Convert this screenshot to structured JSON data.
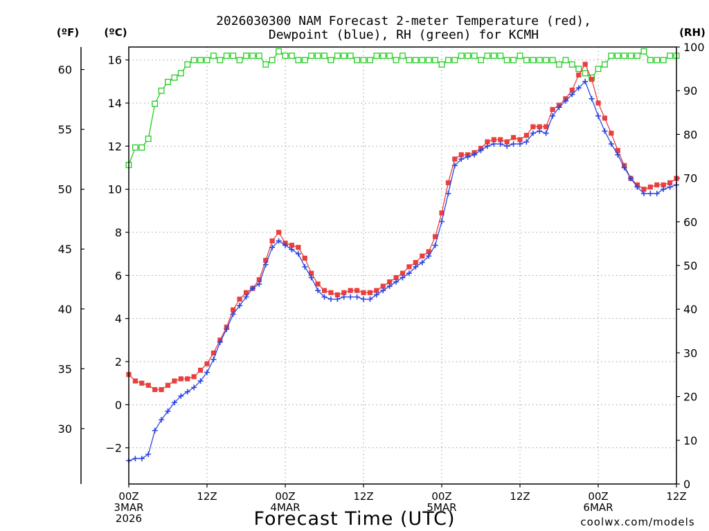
{
  "colors": {
    "temperature": "#e8403f",
    "dewpoint": "#2b45e0",
    "rh": "#22cc22",
    "credit": "#e03030"
  },
  "chart_data": {
    "type": "line",
    "title": "2026030300 NAM Forecast 2-meter Temperature (red),",
    "subtitle": "Dewpoint (blue), RH (green) for KCMH",
    "xlabel": "Forecast Time (UTC)",
    "credit": "coolwx.com/models",
    "left_unit_f": "(ºF)",
    "left_unit_c": "(ºC)",
    "right_unit": "(RH)",
    "x_range_hours": [
      0,
      84
    ],
    "c_range": [
      -3.68,
      16.6
    ],
    "rh_range": [
      0,
      100
    ],
    "c_ticks": [
      -2,
      0,
      2,
      4,
      6,
      8,
      10,
      12,
      14,
      16
    ],
    "f_ticks": [
      30,
      35,
      40,
      45,
      50,
      55,
      60
    ],
    "rh_ticks": [
      0,
      10,
      20,
      30,
      40,
      50,
      60,
      70,
      80,
      90,
      100
    ],
    "x_ticks": [
      {
        "hour": 0,
        "lines": [
          "00Z",
          "3MAR",
          "2026"
        ]
      },
      {
        "hour": 12,
        "lines": [
          "12Z"
        ]
      },
      {
        "hour": 24,
        "lines": [
          "00Z",
          "4MAR"
        ]
      },
      {
        "hour": 36,
        "lines": [
          "12Z"
        ]
      },
      {
        "hour": 48,
        "lines": [
          "00Z",
          "5MAR"
        ]
      },
      {
        "hour": 60,
        "lines": [
          "12Z"
        ]
      },
      {
        "hour": 72,
        "lines": [
          "00Z",
          "6MAR"
        ]
      },
      {
        "hour": 84,
        "lines": [
          "12Z"
        ]
      }
    ],
    "series": [
      {
        "key": "temperature",
        "values": [
          1.4,
          1.1,
          1.0,
          0.9,
          0.7,
          0.7,
          0.9,
          1.1,
          1.2,
          1.2,
          1.3,
          1.6,
          1.9,
          2.4,
          3.0,
          3.6,
          4.4,
          4.9,
          5.2,
          5.4,
          5.8,
          6.7,
          7.6,
          8.0,
          7.5,
          7.4,
          7.3,
          6.8,
          6.1,
          5.6,
          5.3,
          5.2,
          5.1,
          5.2,
          5.3,
          5.3,
          5.2,
          5.2,
          5.3,
          5.5,
          5.7,
          5.9,
          6.1,
          6.4,
          6.6,
          6.9,
          7.1,
          7.8,
          8.9,
          10.3,
          11.4,
          11.6,
          11.6,
          11.7,
          11.9,
          12.2,
          12.3,
          12.3,
          12.2,
          12.4,
          12.3,
          12.5,
          12.9,
          12.9,
          12.9,
          13.7,
          13.9,
          14.2,
          14.6,
          15.3,
          15.8,
          15.1,
          14.0,
          13.3,
          12.6,
          11.8,
          11.1,
          10.5,
          10.2,
          10.0,
          10.1,
          10.2,
          10.2,
          10.3,
          10.5
        ]
      },
      {
        "key": "dewpoint",
        "values": [
          -2.6,
          -2.5,
          -2.5,
          -2.3,
          -1.2,
          -0.7,
          -0.3,
          0.1,
          0.4,
          0.6,
          0.8,
          1.1,
          1.5,
          2.1,
          2.9,
          3.5,
          4.2,
          4.6,
          5.0,
          5.4,
          5.6,
          6.5,
          7.3,
          7.6,
          7.4,
          7.2,
          7.0,
          6.4,
          5.9,
          5.3,
          5.0,
          4.9,
          4.9,
          5.0,
          5.0,
          5.0,
          4.9,
          4.9,
          5.1,
          5.3,
          5.5,
          5.7,
          5.9,
          6.1,
          6.4,
          6.6,
          6.9,
          7.4,
          8.5,
          9.8,
          11.1,
          11.4,
          11.5,
          11.6,
          11.8,
          12.0,
          12.1,
          12.1,
          12.0,
          12.1,
          12.1,
          12.2,
          12.6,
          12.7,
          12.6,
          13.4,
          13.8,
          14.1,
          14.4,
          14.7,
          15.0,
          14.2,
          13.4,
          12.7,
          12.1,
          11.6,
          11.0,
          10.5,
          10.1,
          9.8,
          9.8,
          9.8,
          10.0,
          10.1,
          10.2
        ]
      },
      {
        "key": "rh",
        "values": [
          73,
          77,
          77,
          79,
          87,
          90,
          92,
          93,
          94,
          96,
          97,
          97,
          97,
          98,
          97,
          98,
          98,
          97,
          98,
          98,
          98,
          96,
          97,
          99,
          98,
          98,
          97,
          97,
          98,
          98,
          98,
          97,
          98,
          98,
          98,
          97,
          97,
          97,
          98,
          98,
          98,
          97,
          98,
          97,
          97,
          97,
          97,
          97,
          96,
          97,
          97,
          98,
          98,
          98,
          97,
          98,
          98,
          98,
          97,
          97,
          98,
          97,
          97,
          97,
          97,
          97,
          96,
          97,
          96,
          95,
          94,
          93,
          95,
          96,
          98,
          98,
          98,
          98,
          98,
          99,
          97,
          97,
          97,
          98,
          98
        ]
      }
    ]
  }
}
